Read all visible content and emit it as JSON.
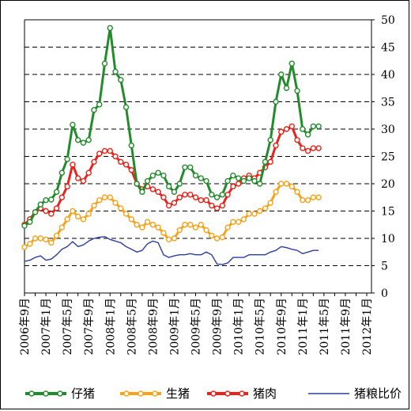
{
  "chart_data": {
    "type": "line",
    "x_labels": [
      "2006年9月",
      "2007年1月",
      "2007年5月",
      "2007年9月",
      "2008年1月",
      "2008年5月",
      "2008年9月",
      "2009年1月",
      "2009年5月",
      "2009年9月",
      "2010年1月",
      "2010年5月",
      "2010年9月",
      "2011年1月",
      "2011年5月",
      "2011年9月",
      "2012年1月"
    ],
    "x_start": "2006-09",
    "y_ticks": [
      0,
      5,
      10,
      15,
      20,
      25,
      30,
      35,
      40,
      45,
      50
    ],
    "ylim": [
      0,
      50
    ],
    "y_axis_side": "right",
    "grid": "horizontal-dashed",
    "legend_position": "bottom",
    "series": [
      {
        "name": "仔猪",
        "color": "#238b2c",
        "marker": "circle",
        "values": [
          12.3,
          13.0,
          14.8,
          16.2,
          17.0,
          17.1,
          18.5,
          22.0,
          24.5,
          30.8,
          28.0,
          27.5,
          28.0,
          33.5,
          34.5,
          42.0,
          48.5,
          40.5,
          39.0,
          34.0,
          27.0,
          20.0,
          18.5,
          20.5,
          21.5,
          22.0,
          21.5,
          19.5,
          18.5,
          20.0,
          23.0,
          23.0,
          21.5,
          21.0,
          20.5,
          18.0,
          17.5,
          18.0,
          20.5,
          21.5,
          21.0,
          20.5,
          21.0,
          20.5,
          20.0,
          24.0,
          28.0,
          35.0,
          40.0,
          37.5,
          42.0,
          37.0,
          30.0,
          29.0,
          30.5,
          30.5
        ]
      },
      {
        "name": "生猪",
        "color": "#f6a31b",
        "marker": "circle",
        "values": [
          8.4,
          9.0,
          10.0,
          10.0,
          9.8,
          9.2,
          10.5,
          12.0,
          13.5,
          15.0,
          14.0,
          13.5,
          14.5,
          16.0,
          17.0,
          17.5,
          17.5,
          16.5,
          15.5,
          14.5,
          13.5,
          12.5,
          12.0,
          13.0,
          12.5,
          12.0,
          11.0,
          9.8,
          10.0,
          11.5,
          12.5,
          12.5,
          12.0,
          12.5,
          11.5,
          10.5,
          10.0,
          10.2,
          12.0,
          13.0,
          13.0,
          13.5,
          14.5,
          14.5,
          15.0,
          15.5,
          16.5,
          18.5,
          20.0,
          20.0,
          19.5,
          18.5,
          17.0,
          17.0,
          17.5,
          17.5
        ]
      },
      {
        "name": "猪肉",
        "color": "#e8231c",
        "marker": "circle",
        "values": [
          12.5,
          13.5,
          14.8,
          15.5,
          15.0,
          14.5,
          15.5,
          17.5,
          19.5,
          23.5,
          21.0,
          20.5,
          22.0,
          24.0,
          25.5,
          26.0,
          26.0,
          25.0,
          24.0,
          23.5,
          22.5,
          20.0,
          19.0,
          19.5,
          19.0,
          18.5,
          17.5,
          16.0,
          16.5,
          17.5,
          18.0,
          18.0,
          17.5,
          17.0,
          17.0,
          16.0,
          15.5,
          16.0,
          18.0,
          19.5,
          20.0,
          21.0,
          21.5,
          21.0,
          22.0,
          23.0,
          24.0,
          27.0,
          29.5,
          30.0,
          30.5,
          28.0,
          26.5,
          26.0,
          26.5,
          26.5
        ]
      },
      {
        "name": "猪粮比价",
        "color": "#2c3e9e",
        "marker": "none",
        "values": [
          5.8,
          6.0,
          6.5,
          6.8,
          6.0,
          6.2,
          7.0,
          8.0,
          8.5,
          9.4,
          8.5,
          8.8,
          9.5,
          10.0,
          10.2,
          10.3,
          9.8,
          9.5,
          9.2,
          8.5,
          8.0,
          7.5,
          7.8,
          9.0,
          9.5,
          9.2,
          7.0,
          6.5,
          6.8,
          7.0,
          7.0,
          7.2,
          7.0,
          7.0,
          7.5,
          7.0,
          5.3,
          5.2,
          5.5,
          6.5,
          6.5,
          6.5,
          7.0,
          7.0,
          7.0,
          7.0,
          7.5,
          7.8,
          8.5,
          8.3,
          8.0,
          7.8,
          7.2,
          7.5,
          7.8,
          7.8
        ]
      }
    ]
  }
}
